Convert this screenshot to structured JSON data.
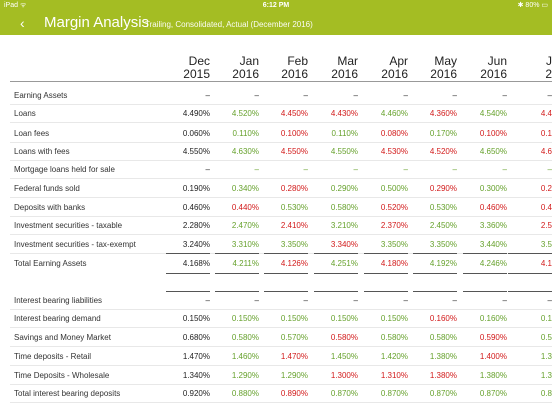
{
  "status_bar": {
    "left": "iPad ᯤ",
    "time": "6:12 PM",
    "right": "✱ 80% ▭"
  },
  "nav": {
    "back_icon": "chevron-left",
    "title": "Margin Analysis",
    "subtitle": "Trailing, Consolidated, Actual (December 2016)"
  },
  "columns": [
    {
      "month": "Dec",
      "year": "2015"
    },
    {
      "month": "Jan",
      "year": "2016"
    },
    {
      "month": "Feb",
      "year": "2016"
    },
    {
      "month": "Mar",
      "year": "2016"
    },
    {
      "month": "Apr",
      "year": "2016"
    },
    {
      "month": "May",
      "year": "2016"
    },
    {
      "month": "Jun",
      "year": "2016"
    },
    {
      "month": "J",
      "year": "2"
    }
  ],
  "rows": [
    {
      "label": "Earning Assets",
      "values": [
        "–",
        "–",
        "–",
        "–",
        "–",
        "–",
        "–",
        "–"
      ],
      "tone": [
        "b",
        "b",
        "b",
        "b",
        "b",
        "b",
        "b",
        "b"
      ]
    },
    {
      "label": "Loans",
      "values": [
        "4.490%",
        "4.520%",
        "4.450%",
        "4.430%",
        "4.460%",
        "4.360%",
        "4.540%",
        "4.4"
      ],
      "tone": [
        "b",
        "g",
        "r",
        "r",
        "g",
        "r",
        "g",
        "r"
      ]
    },
    {
      "label": "Loan fees",
      "values": [
        "0.060%",
        "0.110%",
        "0.100%",
        "0.110%",
        "0.080%",
        "0.170%",
        "0.100%",
        "0.1"
      ],
      "tone": [
        "b",
        "g",
        "r",
        "g",
        "r",
        "g",
        "r",
        "r"
      ]
    },
    {
      "label": "Loans with fees",
      "values": [
        "4.550%",
        "4.630%",
        "4.550%",
        "4.550%",
        "4.530%",
        "4.520%",
        "4.650%",
        "4.6"
      ],
      "tone": [
        "b",
        "g",
        "r",
        "g",
        "r",
        "r",
        "g",
        "r"
      ]
    },
    {
      "label": "Mortgage loans held for sale",
      "values": [
        "–",
        "–",
        "–",
        "–",
        "–",
        "–",
        "–",
        "–"
      ],
      "tone": [
        "b",
        "g",
        "g",
        "g",
        "g",
        "g",
        "g",
        "g"
      ]
    },
    {
      "label": "Federal funds sold",
      "values": [
        "0.190%",
        "0.340%",
        "0.280%",
        "0.290%",
        "0.500%",
        "0.290%",
        "0.300%",
        "0.2"
      ],
      "tone": [
        "b",
        "g",
        "r",
        "g",
        "g",
        "r",
        "g",
        "r"
      ]
    },
    {
      "label": "Deposits with banks",
      "values": [
        "0.460%",
        "0.440%",
        "0.530%",
        "0.580%",
        "0.520%",
        "0.530%",
        "0.460%",
        "0.4"
      ],
      "tone": [
        "b",
        "r",
        "g",
        "g",
        "r",
        "g",
        "r",
        "r"
      ]
    },
    {
      "label": "Investment securities - taxable",
      "values": [
        "2.280%",
        "2.470%",
        "2.410%",
        "3.210%",
        "2.370%",
        "2.450%",
        "3.360%",
        "2.5"
      ],
      "tone": [
        "b",
        "g",
        "r",
        "g",
        "r",
        "g",
        "g",
        "r"
      ]
    },
    {
      "label": "Investment securities - tax-exempt",
      "values": [
        "3.240%",
        "3.310%",
        "3.350%",
        "3.340%",
        "3.350%",
        "3.350%",
        "3.440%",
        "3.5"
      ],
      "tone": [
        "b",
        "g",
        "g",
        "r",
        "g",
        "g",
        "g",
        "g"
      ]
    },
    {
      "label": "Total Earning Assets",
      "values": [
        "4.168%",
        "4.211%",
        "4.126%",
        "4.251%",
        "4.180%",
        "4.192%",
        "4.246%",
        "4.1"
      ],
      "tone": [
        "b",
        "g",
        "r",
        "g",
        "r",
        "g",
        "g",
        "r"
      ]
    },
    {
      "label": "",
      "values": [
        "",
        "",
        "",
        "",
        "",
        "",
        "",
        ""
      ],
      "tone": [
        "b",
        "b",
        "b",
        "b",
        "b",
        "b",
        "b",
        "b"
      ]
    },
    {
      "label": "Interest bearing liabilities",
      "values": [
        "–",
        "–",
        "–",
        "–",
        "–",
        "–",
        "–",
        "–"
      ],
      "tone": [
        "b",
        "b",
        "b",
        "b",
        "b",
        "b",
        "b",
        "b"
      ]
    },
    {
      "label": "Interest bearing demand",
      "values": [
        "0.150%",
        "0.150%",
        "0.150%",
        "0.150%",
        "0.150%",
        "0.160%",
        "0.160%",
        "0.1"
      ],
      "tone": [
        "b",
        "g",
        "g",
        "g",
        "g",
        "r",
        "g",
        "g"
      ]
    },
    {
      "label": "Savings and Money Market",
      "values": [
        "0.680%",
        "0.580%",
        "0.570%",
        "0.580%",
        "0.580%",
        "0.580%",
        "0.590%",
        "0.5"
      ],
      "tone": [
        "b",
        "g",
        "g",
        "r",
        "g",
        "g",
        "r",
        "g"
      ]
    },
    {
      "label": "Time deposits - Retail",
      "values": [
        "1.470%",
        "1.460%",
        "1.470%",
        "1.450%",
        "1.420%",
        "1.380%",
        "1.400%",
        "1.3"
      ],
      "tone": [
        "b",
        "g",
        "r",
        "g",
        "g",
        "g",
        "r",
        "g"
      ]
    },
    {
      "label": "Time Deposits - Wholesale",
      "values": [
        "1.340%",
        "1.290%",
        "1.290%",
        "1.300%",
        "1.310%",
        "1.380%",
        "1.380%",
        "1.3"
      ],
      "tone": [
        "b",
        "g",
        "g",
        "r",
        "r",
        "r",
        "g",
        "g"
      ]
    },
    {
      "label": "Total interest bearing deposits",
      "values": [
        "0.920%",
        "0.880%",
        "0.890%",
        "0.870%",
        "0.870%",
        "0.870%",
        "0.870%",
        "0.8"
      ],
      "tone": [
        "b",
        "g",
        "r",
        "g",
        "g",
        "g",
        "g",
        "g"
      ]
    }
  ],
  "colors": {
    "accent": "#a4bd23",
    "positive": "#66a12c",
    "negative": "#d21a1a"
  }
}
